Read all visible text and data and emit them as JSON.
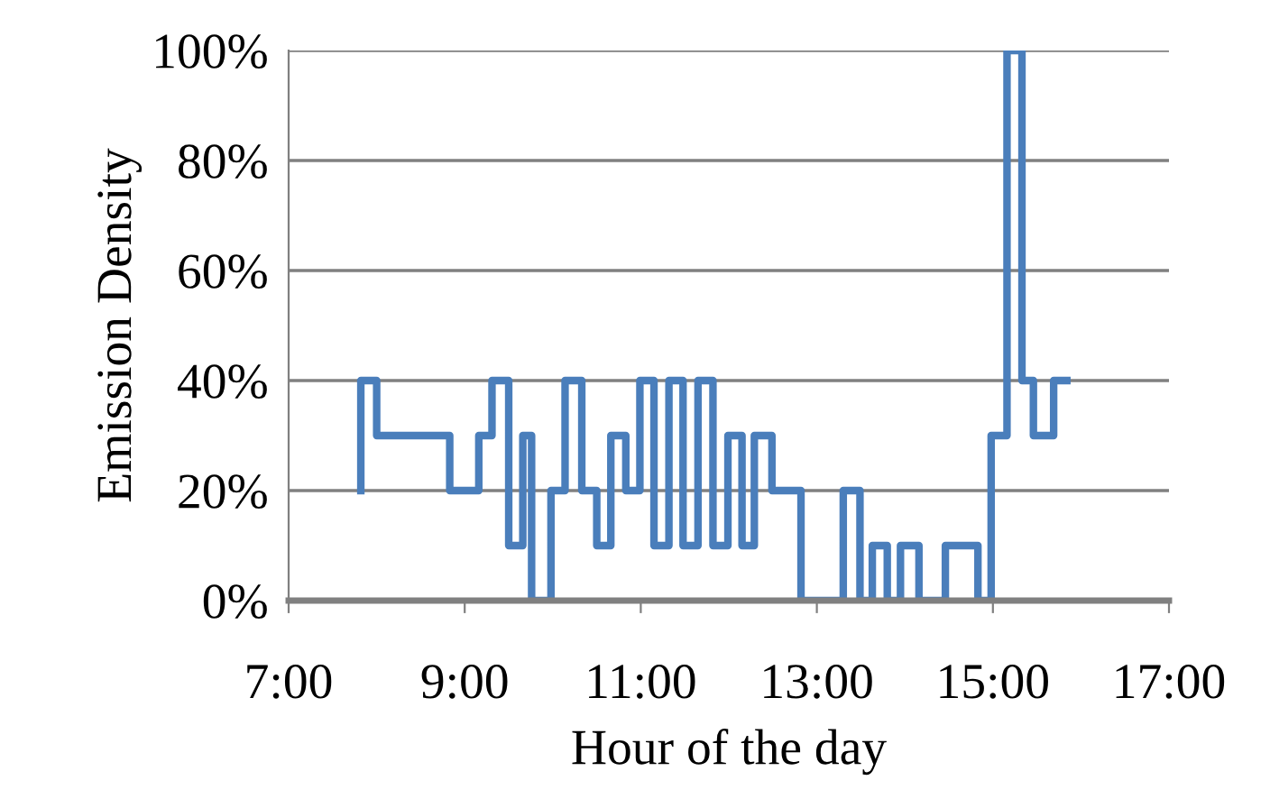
{
  "chart_data": {
    "type": "step",
    "xlabel": "Hour of the day",
    "ylabel": "Emission Density",
    "x": [
      7.82,
      7.82,
      8.0,
      8.83,
      9.16,
      9.31,
      9.5,
      9.66,
      9.76,
      9.98,
      10.14,
      10.33,
      10.5,
      10.66,
      10.83,
      10.99,
      11.15,
      11.32,
      11.48,
      11.65,
      11.82,
      11.99,
      12.15,
      12.29,
      12.49,
      12.82,
      13.3,
      13.49,
      13.63,
      13.8,
      13.95,
      14.16,
      14.46,
      14.83,
      14.98,
      15.16,
      15.33,
      15.46,
      15.69,
      15.84
    ],
    "series": [
      {
        "color": "#4a7ebb",
        "values": [
          20,
          40,
          30,
          20,
          30,
          40,
          10,
          30,
          0,
          20,
          40,
          20,
          10,
          30,
          20,
          40,
          10,
          40,
          10,
          40,
          10,
          30,
          10,
          30,
          20,
          0,
          20,
          0,
          10,
          0,
          10,
          0,
          10,
          0,
          30,
          100,
          40,
          30,
          40,
          40
        ]
      }
    ],
    "xlim": [
      7,
      17
    ],
    "xticks": [
      {
        "value": 7,
        "label": "7:00"
      },
      {
        "value": 9,
        "label": "9:00"
      },
      {
        "value": 11,
        "label": "11:00"
      },
      {
        "value": 13,
        "label": "13:00"
      },
      {
        "value": 15,
        "label": "15:00"
      },
      {
        "value": 17,
        "label": "17:00"
      }
    ],
    "ylim": [
      0,
      100
    ],
    "yticks": [
      {
        "value": 0,
        "label": "0%"
      },
      {
        "value": 20,
        "label": "20%"
      },
      {
        "value": 40,
        "label": "40%"
      },
      {
        "value": 60,
        "label": "60%"
      },
      {
        "value": 80,
        "label": "80%"
      },
      {
        "value": 100,
        "label": "100%"
      }
    ],
    "grid": "y"
  }
}
